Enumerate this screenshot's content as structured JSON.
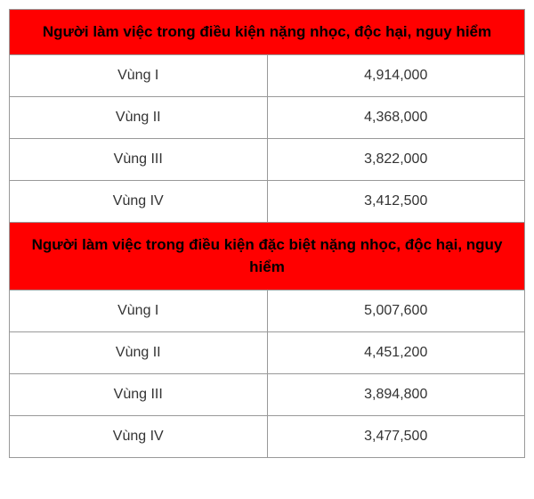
{
  "table": {
    "type": "table",
    "header_bg": "#ff0000",
    "header_text_color": "#000000",
    "border_color": "#999999",
    "cell_text_color": "#333333",
    "font_family": "Arial",
    "header_fontsize": 17,
    "cell_fontsize": 16,
    "region_col_width_pct": 35,
    "value_col_width_pct": 65,
    "sections": [
      {
        "header": "Người làm việc trong điều kiện nặng nhọc, độc hại, nguy hiểm",
        "rows": [
          {
            "region": "Vùng I",
            "value": "4,914,000"
          },
          {
            "region": "Vùng II",
            "value": "4,368,000"
          },
          {
            "region": "Vùng III",
            "value": "3,822,000"
          },
          {
            "region": "Vùng IV",
            "value": "3,412,500"
          }
        ]
      },
      {
        "header": "Người làm việc trong điều kiện đặc biệt nặng nhọc, độc hại, nguy hiểm",
        "rows": [
          {
            "region": "Vùng I",
            "value": "5,007,600"
          },
          {
            "region": "Vùng II",
            "value": "4,451,200"
          },
          {
            "region": "Vùng III",
            "value": "3,894,800"
          },
          {
            "region": "Vùng IV",
            "value": "3,477,500"
          }
        ]
      }
    ]
  }
}
